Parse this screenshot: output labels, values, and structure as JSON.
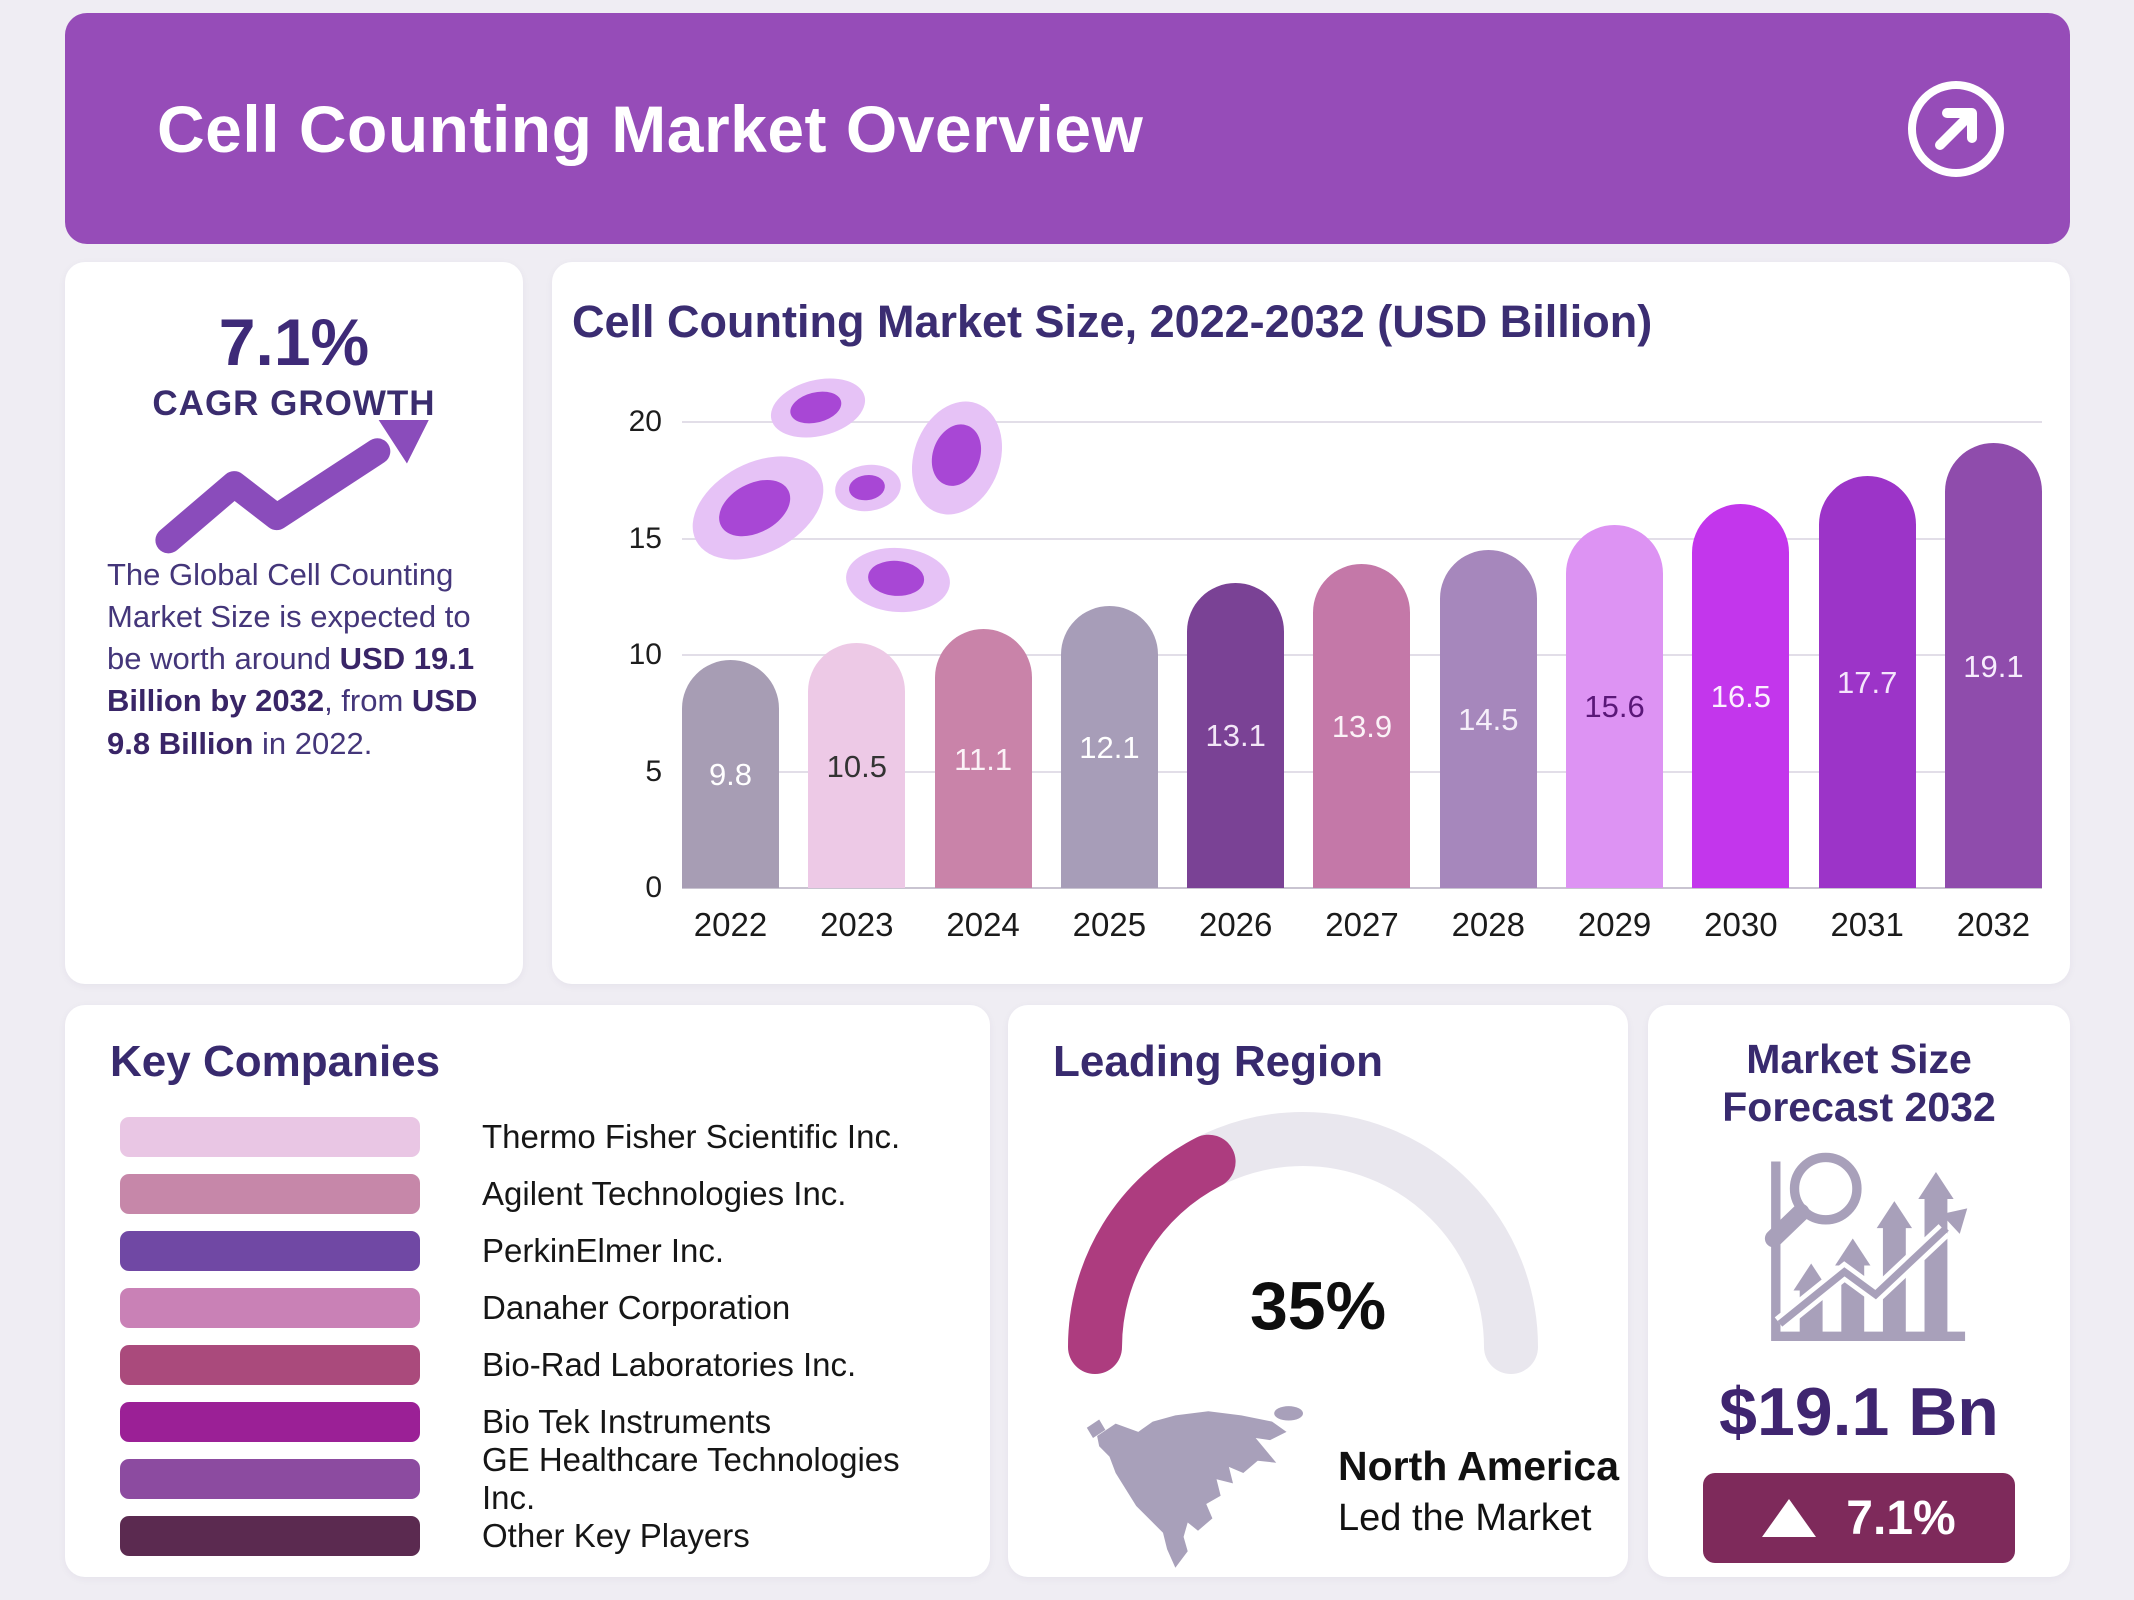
{
  "header": {
    "title": "Cell Counting Market Overview",
    "accent_color": "#964CB8"
  },
  "icons": {
    "header_button": "arrow-up-right-circle-icon",
    "cagr": "trend-up-arrow-icon",
    "forecast": "chart-growth-magnifier-icon",
    "region": "north-america-map-icon",
    "badge": "triangle-up-icon",
    "chart_decoration": "blood-cells-illustration"
  },
  "cagr_card": {
    "percent": "7.1%",
    "label": "CAGR GROWTH",
    "desc_1": "The Global Cell Counting Market Size is expected to be worth around ",
    "desc_2": "USD 19.1 Billion by 2032",
    "desc_3": ", from ",
    "desc_4": "USD 9.8 Billion",
    "desc_5": " in 2022."
  },
  "chart_card": {
    "title": "Cell Counting Market Size, 2022-2032 (USD Billion)"
  },
  "chart_data": {
    "type": "bar",
    "title": "Cell Counting Market Size, 2022-2032 (USD Billion)",
    "categories": [
      "2022",
      "2023",
      "2024",
      "2025",
      "2026",
      "2027",
      "2028",
      "2029",
      "2030",
      "2031",
      "2032"
    ],
    "values": [
      9.8,
      10.5,
      11.1,
      12.1,
      13.1,
      13.9,
      14.5,
      15.6,
      16.5,
      17.7,
      19.1
    ],
    "unit": "USD Billion",
    "xlabel": "",
    "ylabel": "",
    "ylim": [
      0,
      20
    ],
    "yticks": [
      0,
      5,
      10,
      15,
      20
    ],
    "grid": true,
    "legend": false,
    "bar_colors": [
      "#A79DB4",
      "#EDC9E6",
      "#C983A9",
      "#A79DB8",
      "#7A4295",
      "#C478A8",
      "#A687BC",
      "#DD93F3",
      "#C336EC",
      "#9C34C8",
      "#8F4CAC"
    ],
    "label_colors": [
      "#FFFFFF",
      "#333333",
      "#FBF2F7",
      "#FFFFFF",
      "#F2E6F7",
      "#FBF2F7",
      "#F6EFFA",
      "#5A1778",
      "#FCEFFF",
      "#F5E5FC",
      "#F7ECFD"
    ]
  },
  "key_companies": {
    "title": "Key Companies",
    "items": [
      {
        "label": "Thermo Fisher Scientific Inc.",
        "color": "#E9C6E4"
      },
      {
        "label": "Agilent Technologies Inc.",
        "color": "#C687A9"
      },
      {
        "label": "PerkinElmer Inc.",
        "color": "#7048A4"
      },
      {
        "label": "Danaher Corporation",
        "color": "#C981B6"
      },
      {
        "label": "Bio-Rad Laboratories Inc.",
        "color": "#AA4A7C"
      },
      {
        "label": "Bio Tek Instruments",
        "color": "#9B2096"
      },
      {
        "label": "GE Healthcare Technologies Inc.",
        "color": "#8C4BA0"
      },
      {
        "label": "Other Key Players",
        "color": "#5B2A50"
      }
    ]
  },
  "leading_region": {
    "title": "Leading Region",
    "percent": "35%",
    "gauge_value": 35,
    "gauge_fill": "#AD3C7F",
    "gauge_track": "#E9E7EE",
    "region": "North America",
    "region_sub": "Led the Market"
  },
  "forecast_card": {
    "title_line1": "Market Size",
    "title_line2": "Forecast 2032",
    "value": "$19.1 Bn",
    "delta": "7.1%",
    "badge_color": "#7E2A5B"
  }
}
